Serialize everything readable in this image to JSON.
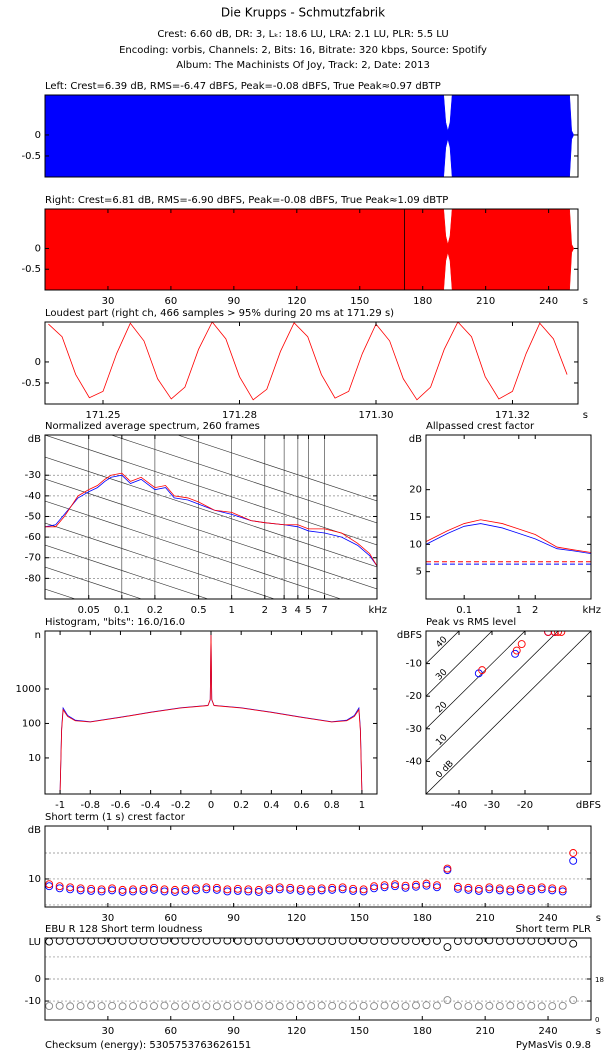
{
  "header": {
    "title": "Die Krupps - Schmutzfabrik",
    "lines": [
      "Crest: 6.60 dB,  DR: 3,  Lₖ: 18.6 LU,  LRA: 2.1 LU,  PLR: 5.5 LU",
      "Encoding: vorbis,  Channels: 2,  Bits: 16,  Bitrate: 320 kbps,  Source: Spotify",
      "Album: The Machinists Of Joy,  Track: 2,  Date: 2013"
    ]
  },
  "chart_data": [
    {
      "type": "waveform",
      "title": "Left: Crest=6.39 dB, RMS=-6.47 dBFS, Peak=-0.08 dBFS, True Peak≈0.97 dBTP",
      "xlim": [
        0,
        254
      ],
      "ylim": [
        -1,
        0.95
      ],
      "yticks": [
        0,
        -0.5
      ],
      "x": [
        0,
        190,
        191,
        192,
        193,
        194,
        250,
        251,
        252
      ],
      "series": [
        {
          "color": "#0000ff",
          "upper": [
            0.95,
            0.95,
            0.3,
            0.1,
            0.3,
            0.95,
            0.95,
            0.1,
            0
          ],
          "lower": [
            -1,
            -1,
            -0.3,
            -0.1,
            -0.3,
            -1,
            -1,
            -0.1,
            0
          ]
        }
      ]
    },
    {
      "type": "waveform",
      "title": "Right: Crest=6.81 dB, RMS=-6.90 dBFS, Peak=-0.08 dBFS, True Peak≈1.09 dBTP",
      "xlim": [
        0,
        254
      ],
      "ylim": [
        -1,
        0.95
      ],
      "yticks": [
        0,
        -0.5
      ],
      "xticks": [
        30,
        60,
        90,
        120,
        150,
        180,
        210,
        240
      ],
      "x_unit": "s",
      "marker": 171.29,
      "x": [
        0,
        190,
        191,
        192,
        193,
        194,
        250,
        251,
        252
      ],
      "series": [
        {
          "color": "#ff0000",
          "upper": [
            0.95,
            0.95,
            0.3,
            0.1,
            0.3,
            0.95,
            0.95,
            0.1,
            0
          ],
          "lower": [
            -1,
            -1,
            -0.3,
            -0.1,
            -0.3,
            -1,
            -1,
            -0.1,
            0
          ]
        }
      ]
    },
    {
      "type": "line",
      "title": "Loudest part (right ch, 466 samples > 95% during 20 ms at 171.29 s)",
      "xlim": [
        171.2465,
        171.3246
      ],
      "ylim": [
        -1,
        0.95
      ],
      "yticks": [
        0,
        -0.5
      ],
      "x_unit": "s",
      "xticks": [
        {
          "value": 171.255,
          "label": "171.25"
        },
        {
          "value": 171.275,
          "label": "171.28"
        },
        {
          "value": 171.295,
          "label": "171.30"
        },
        {
          "value": 171.315,
          "label": "171.32"
        }
      ],
      "x": [
        171.247,
        171.249,
        171.251,
        171.253,
        171.255,
        171.257,
        171.259,
        171.261,
        171.263,
        171.265,
        171.267,
        171.269,
        171.271,
        171.273,
        171.275,
        171.277,
        171.279,
        171.281,
        171.283,
        171.285,
        171.287,
        171.289,
        171.291,
        171.293,
        171.295,
        171.297,
        171.299,
        171.301,
        171.303,
        171.305,
        171.307,
        171.309,
        171.311,
        171.313,
        171.315,
        171.317,
        171.319,
        171.321,
        171.323
      ],
      "series": [
        {
          "color": "#ff0000",
          "values": [
            0.9,
            0.6,
            -0.3,
            -0.85,
            -0.7,
            0.2,
            0.92,
            0.5,
            -0.4,
            -0.88,
            -0.6,
            0.3,
            0.95,
            0.55,
            -0.35,
            -0.9,
            -0.65,
            0.25,
            0.93,
            0.6,
            -0.3,
            -0.86,
            -0.7,
            0.2,
            0.9,
            0.5,
            -0.4,
            -0.9,
            -0.6,
            0.3,
            0.95,
            0.6,
            -0.35,
            -0.88,
            -0.7,
            0.2,
            0.92,
            0.55,
            -0.3
          ]
        }
      ]
    },
    {
      "type": "line",
      "title": "Normalized average spectrum, 260 frames",
      "grid": true,
      "xlog": true,
      "xlim": [
        0.02,
        21
      ],
      "xticks": [
        0.05,
        0.1,
        0.2,
        0.5,
        1,
        2,
        3,
        4,
        5,
        7
      ],
      "x_unit": "kHz",
      "ylim": [
        -90,
        -10.5
      ],
      "yticks": [
        -30,
        -40,
        -50,
        -60,
        -70,
        -80
      ],
      "y_unit": "dB",
      "x": [
        0.02,
        0.025,
        0.03,
        0.04,
        0.05,
        0.06,
        0.07,
        0.08,
        0.1,
        0.12,
        0.15,
        0.2,
        0.25,
        0.3,
        0.4,
        0.5,
        0.7,
        1,
        1.5,
        2,
        3,
        4,
        5,
        7,
        10,
        14,
        18,
        21
      ],
      "series": [
        {
          "color": "#0000ff",
          "values": [
            -55,
            -54,
            -49,
            -41,
            -38,
            -36,
            -33,
            -31,
            -30,
            -34,
            -32,
            -37,
            -36,
            -41,
            -42,
            -44,
            -47,
            -49,
            -52,
            -53,
            -54,
            -55,
            -57,
            -58,
            -60,
            -64,
            -69,
            -74
          ]
        },
        {
          "color": "#ff0000",
          "values": [
            -55,
            -55,
            -50,
            -40,
            -37,
            -35,
            -32,
            -30,
            -29,
            -33,
            -31,
            -36,
            -35,
            -40,
            -41,
            -43,
            -47,
            -48,
            -52,
            -53,
            -54,
            -54,
            -56,
            -56,
            -58,
            -63,
            -68,
            -74
          ]
        }
      ]
    },
    {
      "type": "line",
      "title": "Allpassed crest factor",
      "xlog": true,
      "xlim": [
        0.02,
        21
      ],
      "xticks": [
        0.1,
        1,
        2
      ],
      "x_unit": "kHz",
      "ylim": [
        0,
        30
      ],
      "yticks": [
        20,
        15,
        10,
        5
      ],
      "y_unit": "dB",
      "x": [
        0.02,
        0.05,
        0.1,
        0.2,
        0.5,
        1,
        2,
        5,
        10,
        21
      ],
      "series": [
        {
          "color": "#0000ff",
          "ref": 6.39,
          "values": [
            10,
            12,
            13.3,
            13.8,
            13,
            12,
            11,
            9.2,
            8.8,
            8.3
          ]
        },
        {
          "color": "#ff0000",
          "ref": 6.81,
          "values": [
            10.5,
            12.5,
            13.8,
            14.5,
            13.8,
            12.8,
            11.8,
            9.5,
            9,
            8.5
          ]
        }
      ]
    },
    {
      "type": "line",
      "title": "Histogram, \"bits\": 16.0/16.0",
      "xlim": [
        -1.1,
        1.1
      ],
      "xticks": [
        -1,
        -0.8,
        -0.6,
        -0.4,
        -0.2,
        0,
        0.2,
        0.4,
        0.6,
        0.8,
        1
      ],
      "ylog": true,
      "ylim": [
        0.9,
        48000
      ],
      "yticks": [
        1000,
        100,
        10
      ],
      "y_unit": "n",
      "x": [
        -1,
        -0.99,
        -0.98,
        -0.95,
        -0.9,
        -0.8,
        -0.6,
        -0.4,
        -0.2,
        -0.02,
        -0.005,
        0,
        0.005,
        0.02,
        0.2,
        0.4,
        0.6,
        0.8,
        0.9,
        0.95,
        0.98,
        0.99,
        1
      ],
      "series": [
        {
          "color": "#0000ff",
          "values": [
            1,
            70,
            280,
            170,
            125,
            112,
            152,
            212,
            285,
            335,
            480,
            40000,
            480,
            335,
            285,
            212,
            152,
            112,
            125,
            170,
            280,
            70,
            1
          ]
        },
        {
          "color": "#ff0000",
          "values": [
            1,
            60,
            250,
            160,
            120,
            110,
            150,
            210,
            280,
            330,
            500,
            40000,
            500,
            330,
            280,
            210,
            150,
            110,
            120,
            160,
            250,
            60,
            1
          ]
        }
      ]
    },
    {
      "type": "scatter",
      "title": "Peak vs RMS level",
      "xlim": [
        -50,
        0
      ],
      "xticks": [
        -40,
        -30,
        -20
      ],
      "x_unit": "dBFS",
      "ylim": [
        -50,
        0
      ],
      "yticks": [
        -10,
        -20,
        -30,
        -40
      ],
      "y_unit": "dBFS",
      "diagonals": [
        0,
        10,
        20,
        30,
        40
      ],
      "diagonal_labels": [
        "0 dB",
        "10",
        "20",
        "30",
        "40"
      ],
      "series": [
        {
          "color": "#0000ff",
          "x": [
            -34,
            -23,
            -13,
            -11
          ],
          "values": [
            -13,
            -7,
            -0.3,
            -0.3
          ]
        },
        {
          "color": "#ff0000",
          "x": [
            -33,
            -22.5,
            -21,
            -13,
            -11,
            -10,
            -9
          ],
          "values": [
            -12,
            -6,
            -4,
            -0.3,
            -0.3,
            -0.3,
            -0.3
          ]
        }
      ]
    },
    {
      "type": "scatter",
      "title": "Short term (1 s) crest factor",
      "xlim": [
        0,
        260.5
      ],
      "xticks": [
        30,
        60,
        90,
        120,
        150,
        180,
        210,
        240
      ],
      "x_unit": "s",
      "ylim": [
        4.6,
        20.2
      ],
      "yticks": [
        10
      ],
      "y_unit": "dB",
      "minor_grid": [
        5,
        15
      ],
      "x": [
        2,
        7,
        12,
        17,
        22,
        27,
        32,
        37,
        42,
        47,
        52,
        57,
        62,
        67,
        72,
        77,
        82,
        87,
        92,
        97,
        102,
        107,
        112,
        117,
        122,
        127,
        132,
        137,
        142,
        147,
        152,
        157,
        162,
        167,
        172,
        177,
        182,
        187,
        192,
        197,
        202,
        207,
        212,
        217,
        222,
        227,
        232,
        237,
        242,
        247,
        252
      ],
      "series": [
        {
          "color": "#0000ff",
          "values": [
            8.6,
            8.2,
            8,
            7.8,
            7.7,
            7.6,
            7.8,
            7.5,
            7.6,
            7.7,
            7.9,
            7.6,
            7.5,
            7.7,
            7.8,
            8,
            7.9,
            7.6,
            7.7,
            7.6,
            7.5,
            7.8,
            8,
            7.9,
            7.7,
            7.6,
            7.8,
            7.9,
            8,
            7.7,
            7.6,
            8.2,
            8.4,
            8.6,
            8.3,
            8.5,
            8.7,
            8.4,
            11.7,
            8.1,
            7.9,
            7.7,
            8,
            7.8,
            7.6,
            7.9,
            7.7,
            8,
            7.8,
            7.6,
            13.5
          ]
        },
        {
          "color": "#ff0000",
          "values": [
            9,
            8.6,
            8.4,
            8.2,
            8.1,
            8,
            8.2,
            7.9,
            8,
            8.1,
            8.3,
            8,
            7.9,
            8.1,
            8.2,
            8.4,
            8.3,
            8,
            8.1,
            8,
            7.9,
            8.2,
            8.4,
            8.3,
            8.1,
            8,
            8.2,
            8.3,
            8.4,
            8.1,
            8,
            8.6,
            8.8,
            9,
            8.7,
            8.9,
            9.1,
            8.8,
            12,
            8.5,
            8.3,
            8.1,
            8.4,
            8.2,
            8,
            8.3,
            8.1,
            8.4,
            8.2,
            8,
            15
          ]
        }
      ]
    },
    {
      "type": "scatter",
      "title": "EBU R 128 Short term loudness",
      "y2_label": "Short term PLR",
      "xlim": [
        0,
        260.5
      ],
      "xticks": [
        30,
        60,
        90,
        120,
        150,
        180,
        210,
        240
      ],
      "x_unit": "s",
      "ylim": [
        -18.6,
        18.6
      ],
      "yticks": [
        0,
        -10
      ],
      "y_unit": "LU",
      "minor_grid": [
        10
      ],
      "y2lim": [
        0,
        37
      ],
      "y2ticks": [
        18,
        0
      ],
      "x": [
        2,
        7,
        12,
        17,
        22,
        27,
        32,
        37,
        42,
        47,
        52,
        57,
        62,
        67,
        72,
        77,
        82,
        87,
        92,
        97,
        102,
        107,
        112,
        117,
        122,
        127,
        132,
        137,
        142,
        147,
        152,
        157,
        162,
        167,
        172,
        177,
        182,
        187,
        192,
        197,
        202,
        207,
        212,
        217,
        222,
        227,
        232,
        237,
        242,
        247,
        252
      ],
      "series": [
        {
          "color": "#000000",
          "values": [
            17,
            17.3,
            17.2,
            17.4,
            17.3,
            17.5,
            17.2,
            17.3,
            17.4,
            17.3,
            17.2,
            17.5,
            17.3,
            17.4,
            17.2,
            17.3,
            17.5,
            17.4,
            17.3,
            17.2,
            17.4,
            17.3,
            17.5,
            17.3,
            17.2,
            17.4,
            17.3,
            17.2,
            17.4,
            17.3,
            17.5,
            17.3,
            17.2,
            17.4,
            17.3,
            17.2,
            17.1,
            17.3,
            14.5,
            17.2,
            17.4,
            17.3,
            17.5,
            17.2,
            17.3,
            17.4,
            17.3,
            17.2,
            17.4,
            17.3,
            16
          ]
        },
        {
          "color": "#888888",
          "axis": "y2",
          "values": [
            6.3,
            6.4,
            6.2,
            6.3,
            6.5,
            6.3,
            6.4,
            6.2,
            6.3,
            6.4,
            6.3,
            6.5,
            6.2,
            6.3,
            6.4,
            6.3,
            6.2,
            6.4,
            6.3,
            6.5,
            6.3,
            6.4,
            6.2,
            6.3,
            6.4,
            6.3,
            6.5,
            6.4,
            6.3,
            6.2,
            6.4,
            6.3,
            6.5,
            6.4,
            6.3,
            6.6,
            6.7,
            6.5,
            9,
            6.4,
            6.3,
            6.2,
            6.4,
            6.3,
            6.5,
            6.3,
            6.4,
            6.2,
            6.3,
            6.4,
            9
          ]
        }
      ]
    }
  ],
  "footer": {
    "checksum": "Checksum (energy): 5305753763626151",
    "version": "PyMasVis 0.9.8"
  }
}
